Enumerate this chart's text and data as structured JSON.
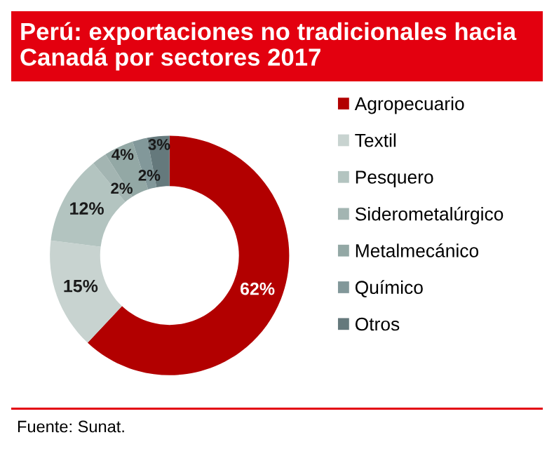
{
  "chart_data": {
    "type": "donut",
    "title": "Perú: exportaciones no tradicionales hacia\nCanadá por sectores 2017",
    "categories": [
      "Agropecuario",
      "Textil",
      "Pesquero",
      "Siderometalúrgico",
      "Metalmecánico",
      "Químico",
      "Otros"
    ],
    "values": [
      62,
      15,
      12,
      2,
      4,
      2,
      3
    ],
    "colors": [
      "#b20000",
      "#c8d3d0",
      "#b3c4c0",
      "#a3b5b2",
      "#93a8a5",
      "#82989a",
      "#65797c"
    ],
    "value_labels": [
      "62%",
      "15%",
      "12%",
      "2%",
      "4%",
      "2%",
      "3%"
    ],
    "legend": "right",
    "annotations": [
      "Fuente: Sunat."
    ]
  }
}
